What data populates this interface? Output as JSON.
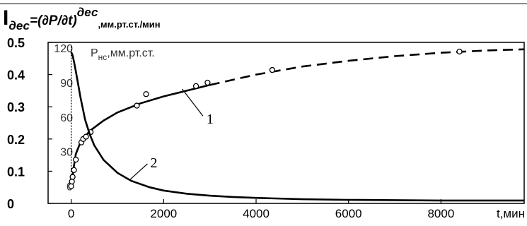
{
  "title": {
    "main": "I",
    "sub": "дес",
    "eq": "=(∂P/∂t)",
    "sup": "дес",
    "unit": ",мм.рт.ст./мин"
  },
  "chart_data": {
    "type": "line",
    "x": {
      "label": "t,мин",
      "range": [
        -500,
        9800
      ],
      "ticks": [
        0,
        2000,
        4000,
        6000,
        8000
      ],
      "tick_labels": [
        "0",
        "2000",
        "4000",
        "6000",
        "8000"
      ]
    },
    "y_left": {
      "range": [
        0,
        0.5
      ],
      "ticks": [
        0,
        0.1,
        0.2,
        0.3,
        0.4,
        0.5
      ],
      "tick_labels": [
        "0",
        "0.1",
        "0.2",
        "0.3",
        "0.4",
        "0.5"
      ]
    },
    "y_right": {
      "label": "Pнс,мм.рт.ст.",
      "label_main": "P",
      "label_sub": "нс",
      "label_unit": ",мм.рт.ст.",
      "range": [
        -15,
        125
      ],
      "ticks": [
        0,
        30,
        60,
        90,
        120
      ],
      "tick_labels": [
        "0",
        "30",
        "60",
        "90",
        "120"
      ]
    },
    "series": [
      {
        "name": "1",
        "axis": "right",
        "style": "solid-then-dashed",
        "solid_until_x": 3000,
        "x": [
          0,
          20,
          50,
          100,
          200,
          400,
          700,
          1000,
          1500,
          2000,
          2500,
          3000,
          4000,
          5000,
          6000,
          7000,
          8000,
          9000,
          9800
        ],
        "y": [
          0,
          5,
          15,
          28,
          38,
          48,
          57,
          64,
          72,
          78,
          83,
          88,
          97,
          104,
          109,
          113,
          116,
          118,
          119
        ],
        "points_x": [
          0,
          15,
          30,
          60,
          100,
          220,
          260,
          320,
          420,
          1420,
          1620,
          2700,
          2950,
          4350,
          8400
        ],
        "points_y": [
          0,
          4,
          8,
          14,
          23,
          38,
          41,
          43,
          47,
          70,
          80,
          87,
          90,
          101,
          117
        ]
      },
      {
        "name": "2",
        "axis": "left",
        "style": "solid",
        "x": [
          0,
          30,
          60,
          100,
          150,
          200,
          300,
          400,
          500,
          700,
          1000,
          1300,
          1700,
          2000,
          2500,
          3000,
          3500,
          4000,
          5000,
          6000,
          7000,
          8000,
          9000,
          9800
        ],
        "y": [
          0.47,
          0.46,
          0.44,
          0.41,
          0.37,
          0.33,
          0.26,
          0.215,
          0.18,
          0.135,
          0.095,
          0.07,
          0.05,
          0.04,
          0.03,
          0.024,
          0.02,
          0.017,
          0.013,
          0.011,
          0.01,
          0.009,
          0.009,
          0.009
        ]
      }
    ],
    "annotations": [
      "1",
      "2"
    ]
  }
}
